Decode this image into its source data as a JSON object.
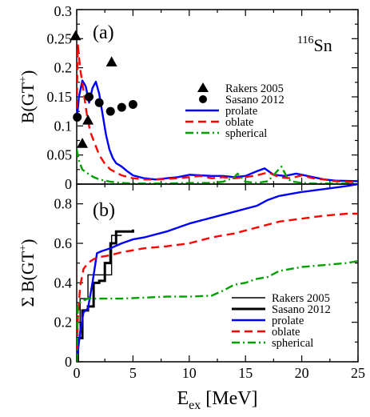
{
  "chart_data": [
    {
      "type": "line",
      "panel_label": "(a)",
      "annotation": "116Sn",
      "annotation_mass": "116",
      "annotation_element": "Sn",
      "xlim": [
        0,
        25
      ],
      "ylim": [
        0,
        0.3
      ],
      "ylabel": "B(GT+)",
      "ylabel_main": "B(GT",
      "ylabel_sup": "+",
      "ylabel_close": ")",
      "x_ticks": [
        0,
        5,
        10,
        15,
        20,
        25
      ],
      "x_tick_labels": [
        "",
        "",
        "",
        "",
        "",
        ""
      ],
      "y_ticks": [
        0,
        0.05,
        0.1,
        0.15,
        0.2,
        0.25,
        0.3
      ],
      "y_tick_labels": [
        "0",
        "0.05",
        "0.1",
        "0.15",
        "0.2",
        "0.25",
        "0.3"
      ],
      "legend_position": "right",
      "series": [
        {
          "name": "Rakers 2005",
          "kind": "scatter",
          "marker": "triangle",
          "color": "#000000",
          "x": [
            -0.1,
            0.5,
            1.0,
            3.1
          ],
          "y": [
            0.255,
            0.07,
            0.11,
            0.21
          ]
        },
        {
          "name": "Sasano 2012",
          "kind": "scatter",
          "marker": "circle",
          "color": "#000000",
          "x": [
            0.05,
            1.1,
            2.0,
            3.0,
            4.0,
            5.0
          ],
          "y": [
            0.115,
            0.15,
            0.14,
            0.125,
            0.132,
            0.137
          ]
        },
        {
          "name": "prolate",
          "kind": "line",
          "dash": "solid",
          "color": "#0000ff",
          "x": [
            0,
            0.2,
            0.5,
            0.8,
            1.1,
            1.4,
            1.7,
            2.0,
            2.3,
            2.6,
            2.9,
            3.2,
            3.5,
            4.0,
            4.5,
            5,
            6,
            7,
            8,
            9,
            10,
            11,
            12,
            13,
            14,
            15,
            16,
            16.7,
            17.5,
            18.5,
            19.5,
            21,
            22,
            23,
            25
          ],
          "y": [
            0.11,
            0.15,
            0.178,
            0.168,
            0.14,
            0.165,
            0.176,
            0.155,
            0.12,
            0.085,
            0.06,
            0.045,
            0.036,
            0.03,
            0.022,
            0.015,
            0.01,
            0.008,
            0.01,
            0.012,
            0.016,
            0.015,
            0.014,
            0.014,
            0.012,
            0.014,
            0.022,
            0.027,
            0.016,
            0.014,
            0.018,
            0.012,
            0.008,
            0.006,
            0.005
          ]
        },
        {
          "name": "oblate",
          "kind": "line",
          "dash": "dashed",
          "color": "#ff0000",
          "x": [
            0,
            0.1,
            0.3,
            0.6,
            0.9,
            1.2,
            1.6,
            2.0,
            2.5,
            3.0,
            3.5,
            4.0,
            5,
            6,
            7,
            8,
            9,
            10,
            11,
            12,
            13,
            14,
            15,
            16,
            17,
            18,
            19,
            20,
            21,
            22,
            23,
            25
          ],
          "y": [
            0.13,
            0.24,
            0.2,
            0.16,
            0.12,
            0.09,
            0.07,
            0.05,
            0.035,
            0.025,
            0.02,
            0.015,
            0.01,
            0.008,
            0.008,
            0.009,
            0.01,
            0.012,
            0.014,
            0.01,
            0.012,
            0.01,
            0.012,
            0.015,
            0.02,
            0.012,
            0.01,
            0.015,
            0.01,
            0.008,
            0.005,
            0.003
          ]
        },
        {
          "name": "spherical",
          "kind": "line",
          "dash": "dashdot",
          "color": "#00a000",
          "x": [
            0,
            0.2,
            0.5,
            1.0,
            1.5,
            2.0,
            3,
            4,
            5,
            6,
            8,
            10,
            12,
            13,
            14,
            14.3,
            14.6,
            15,
            16,
            17,
            17.8,
            18.2,
            18.6,
            19,
            20,
            21,
            22,
            23,
            25
          ],
          "y": [
            0.06,
            0.04,
            0.025,
            0.018,
            0.012,
            0.008,
            0.004,
            0.002,
            0.001,
            0.001,
            0.001,
            0.002,
            0.002,
            0.004,
            0.012,
            0.018,
            0.012,
            0.004,
            0.002,
            0.005,
            0.022,
            0.03,
            0.015,
            0.005,
            0.002,
            0.001,
            0.001,
            0.001,
            0.001
          ]
        }
      ]
    },
    {
      "type": "line",
      "panel_label": "(b)",
      "xlim": [
        0,
        25
      ],
      "ylim": [
        0,
        0.9
      ],
      "xlabel": "Eex [MeV]",
      "xlabel_main": "E",
      "xlabel_sub": "ex",
      "xlabel_rest": " [MeV]",
      "ylabel": "Σ B(GT+)",
      "ylabel_main": "Σ B(GT",
      "ylabel_sup": "+",
      "ylabel_close": ")",
      "x_ticks": [
        0,
        5,
        10,
        15,
        20,
        25
      ],
      "x_tick_labels": [
        "0",
        "5",
        "10",
        "15",
        "20",
        "25"
      ],
      "y_ticks": [
        0,
        0.2,
        0.4,
        0.6,
        0.8
      ],
      "y_tick_labels": [
        "0",
        "0.2",
        "0.4",
        "0.6",
        "0.8"
      ],
      "legend_position": "bottom-right",
      "series": [
        {
          "name": "Rakers 2005",
          "kind": "step",
          "color": "#000000",
          "width": 1.4,
          "x": [
            0,
            0.3,
            0.6,
            1.0,
            2.1,
            3.1,
            4.0
          ],
          "y": [
            0.12,
            0.32,
            0.32,
            0.44,
            0.44,
            0.64,
            0.64
          ]
        },
        {
          "name": "Sasano 2012",
          "kind": "step",
          "color": "#000000",
          "width": 3,
          "x": [
            0,
            0.1,
            0.5,
            1.0,
            1.5,
            2.0,
            2.5,
            3.0,
            3.5,
            4.0,
            5.0
          ],
          "y": [
            0,
            0.12,
            0.26,
            0.28,
            0.4,
            0.41,
            0.5,
            0.6,
            0.66,
            0.66,
            0.67
          ]
        },
        {
          "name": "prolate",
          "kind": "line",
          "dash": "solid",
          "color": "#0000ff",
          "x": [
            0,
            0.3,
            0.6,
            1.0,
            1.4,
            1.8,
            2.2,
            3,
            4,
            5,
            6,
            8,
            10,
            12,
            14,
            16,
            17,
            18,
            20,
            22,
            24,
            25
          ],
          "y": [
            0,
            0.15,
            0.25,
            0.27,
            0.4,
            0.55,
            0.56,
            0.575,
            0.6,
            0.62,
            0.63,
            0.66,
            0.7,
            0.73,
            0.76,
            0.79,
            0.82,
            0.84,
            0.86,
            0.875,
            0.89,
            0.9
          ]
        },
        {
          "name": "oblate",
          "kind": "line",
          "dash": "dashed",
          "color": "#ff0000",
          "x": [
            0,
            0.1,
            0.3,
            0.6,
            1.0,
            1.5,
            2.0,
            3,
            4,
            5,
            6,
            8,
            10,
            12,
            14,
            16,
            18,
            20,
            22,
            24,
            25
          ],
          "y": [
            0,
            0.22,
            0.38,
            0.47,
            0.5,
            0.52,
            0.53,
            0.54,
            0.555,
            0.565,
            0.575,
            0.585,
            0.6,
            0.63,
            0.65,
            0.68,
            0.71,
            0.725,
            0.74,
            0.75,
            0.75
          ]
        },
        {
          "name": "spherical",
          "kind": "line",
          "dash": "dashdot",
          "color": "#00a000",
          "x": [
            0,
            0.1,
            0.3,
            0.6,
            1.0,
            2,
            4,
            6,
            8,
            10,
            12,
            13,
            14,
            15,
            16,
            17,
            18,
            19,
            20,
            22,
            24,
            25
          ],
          "y": [
            0,
            0.28,
            0.3,
            0.31,
            0.32,
            0.32,
            0.32,
            0.325,
            0.33,
            0.33,
            0.335,
            0.36,
            0.39,
            0.4,
            0.42,
            0.43,
            0.46,
            0.47,
            0.48,
            0.49,
            0.5,
            0.51
          ]
        }
      ]
    }
  ]
}
